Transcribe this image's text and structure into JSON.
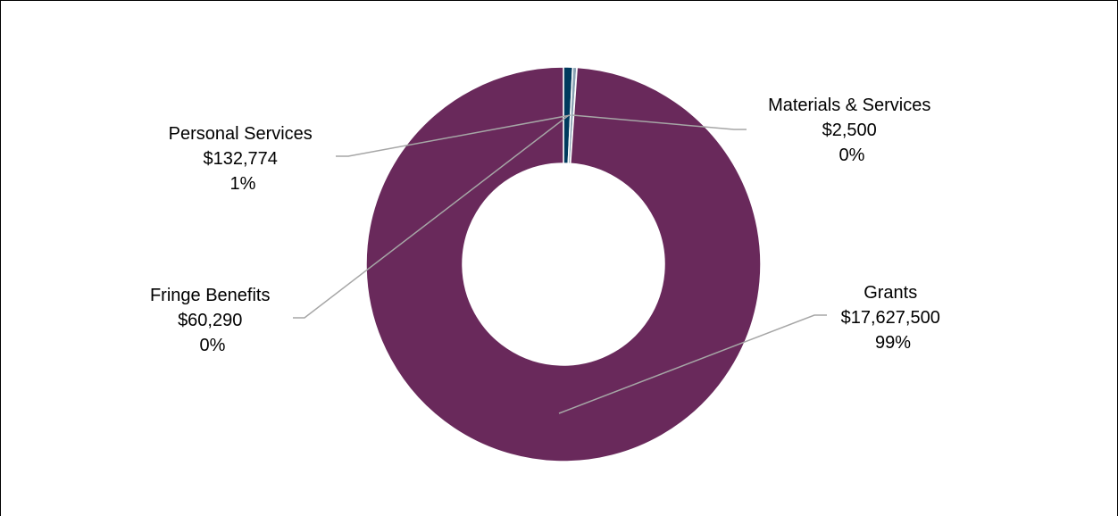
{
  "chart_data": {
    "type": "pie",
    "donut": true,
    "title": "",
    "slices": [
      {
        "name": "Personal Services",
        "value_label": "$132,774",
        "pct_label": "1%",
        "value": 132774,
        "color": "#003a5d"
      },
      {
        "name": "Fringe Benefits",
        "value_label": "$60,290",
        "pct_label": "0%",
        "value": 60290,
        "color": "#8aa2b3"
      },
      {
        "name": "Materials & Services",
        "value_label": "$2,500",
        "pct_label": "0%",
        "value": 2500,
        "color": "#c9d3db"
      },
      {
        "name": "Grants",
        "value_label": "$17,627,500",
        "pct_label": "99%",
        "value": 17627500,
        "color": "#69295b"
      }
    ],
    "legend": "none",
    "leader_line_color": "#a6a6a6",
    "separator_color": "#ffffff"
  }
}
